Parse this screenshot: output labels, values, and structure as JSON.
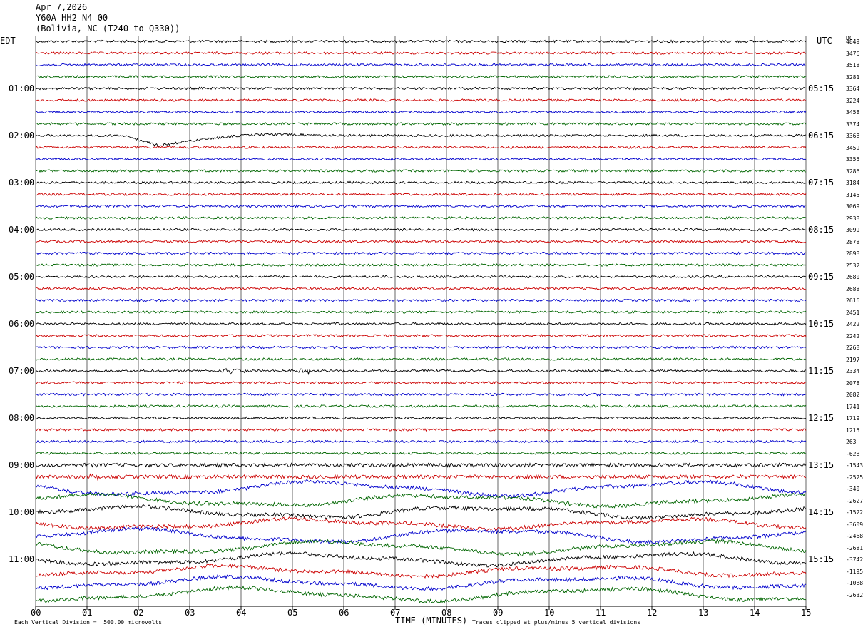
{
  "header": {
    "date": "Apr 7,2026",
    "station": "Y60A HH2 N4 00",
    "location": "(Bolivia, NC (T240 to Q330))"
  },
  "axes": {
    "left_label": "EDT",
    "right_label": "UTC",
    "dc_label": "DC",
    "xlabel": "TIME (MINUTES)"
  },
  "footer": {
    "scale_note": "Each Vertical Division =  500.00 microvolts",
    "clip_note": "Traces clipped at plus/minus 5 vertical divisions"
  },
  "colors": {
    "cycle": [
      "#000000",
      "#cc0000",
      "#0000cc",
      "#006600"
    ],
    "grid": "#000000"
  },
  "chart_data": {
    "type": "line",
    "title": "",
    "xlabel": "TIME (MINUTES)",
    "ylabel": "",
    "xlim": [
      0,
      15
    ],
    "x_ticks": [
      "00",
      "01",
      "02",
      "03",
      "04",
      "05",
      "06",
      "07",
      "08",
      "09",
      "10",
      "11",
      "12",
      "13",
      "14",
      "15"
    ],
    "left_time_labels": [
      "01:00",
      "02:00",
      "03:00",
      "04:00",
      "05:00",
      "06:00",
      "07:00",
      "08:00",
      "09:00",
      "10:00",
      "11:00"
    ],
    "right_time_labels": [
      "05:15",
      "06:15",
      "07:15",
      "08:15",
      "09:15",
      "10:15",
      "11:15",
      "12:15",
      "13:15",
      "14:15",
      "15:15"
    ],
    "dc_values": [
      "4849",
      "3476",
      "3518",
      "3281",
      "3364",
      "3224",
      "3458",
      "3374",
      "3368",
      "3459",
      "3355",
      "3286",
      "3184",
      "3145",
      "3069",
      "2938",
      "3099",
      "2878",
      "2898",
      "2532",
      "2680",
      "2688",
      "2616",
      "2451",
      "2422",
      "2242",
      "2268",
      "2197",
      "2334",
      "2078",
      "2082",
      "1741",
      "1719",
      "1215",
      "263",
      "-628",
      "-1543",
      "-2525",
      "-340",
      "-2627",
      "-1522",
      "-3609",
      "-2468",
      "-2681",
      "-3742",
      "-1195",
      "-1088",
      "-2632"
    ],
    "traces_count": 48,
    "events": [
      {
        "trace": 8,
        "type": "dip",
        "minute": 2.4,
        "note": "long-period swing"
      },
      {
        "trace": 28,
        "type": "burst",
        "minute": 3.8
      },
      {
        "trace": 28,
        "type": "burst",
        "minute": 5.3
      },
      {
        "trace": 37,
        "type": "burst",
        "minute": 1.2
      }
    ],
    "grid": true
  }
}
